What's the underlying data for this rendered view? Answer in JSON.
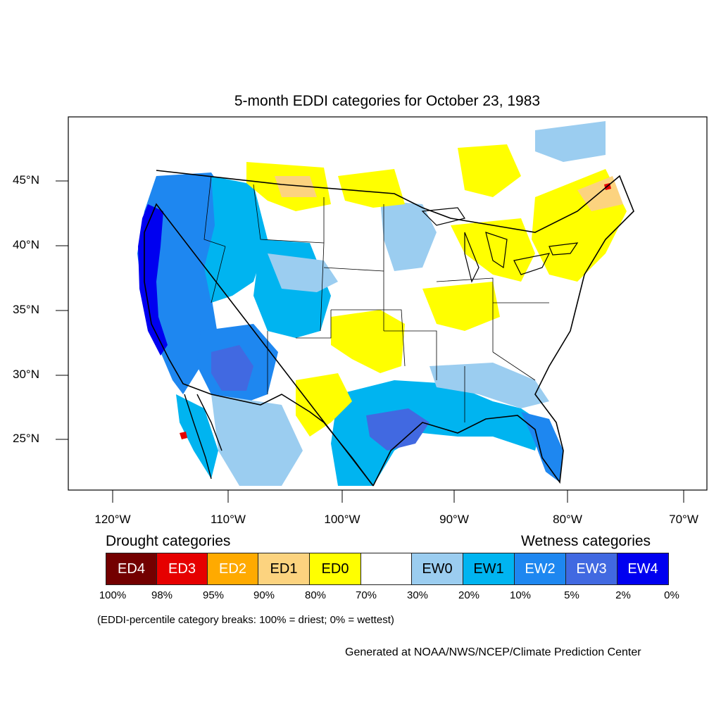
{
  "title": "5-month EDDI categories for October 23, 1983",
  "lat_labels": [
    "45°N",
    "40°N",
    "35°N",
    "30°N",
    "25°N"
  ],
  "lon_labels": [
    "120°W",
    "110°W",
    "100°W",
    "90°W",
    "80°W",
    "70°W"
  ],
  "legend": {
    "drought_heading": "Drought categories",
    "wetness_heading": "Wetness categories",
    "categories": [
      {
        "label": "ED4",
        "color": "#730000",
        "text_color": "#ffffff"
      },
      {
        "label": "ED3",
        "color": "#e60000",
        "text_color": "#ffffff"
      },
      {
        "label": "ED2",
        "color": "#ffaa00",
        "text_color": "#ffffff"
      },
      {
        "label": "ED1",
        "color": "#fcd37f",
        "text_color": "#000000"
      },
      {
        "label": "ED0",
        "color": "#ffff00",
        "text_color": "#000000"
      },
      {
        "label": "",
        "color": "#ffffff",
        "text_color": "#000000"
      },
      {
        "label": "EW0",
        "color": "#9bcdf0",
        "text_color": "#000000"
      },
      {
        "label": "EW1",
        "color": "#00b4f0",
        "text_color": "#000000"
      },
      {
        "label": "EW2",
        "color": "#1e87f0",
        "text_color": "#ffffff"
      },
      {
        "label": "EW3",
        "color": "#4169e1",
        "text_color": "#ffffff"
      },
      {
        "label": "EW4",
        "color": "#0000f0",
        "text_color": "#ffffff"
      }
    ],
    "breaks": [
      "100%",
      "98%",
      "95%",
      "90%",
      "80%",
      "70%",
      "30%",
      "20%",
      "10%",
      "5%",
      "2%",
      "0%"
    ]
  },
  "note": "(EDDI-percentile category breaks: 100% = driest; 0% = wettest)",
  "credit": "Generated at NOAA/NWS/NCEP/Climate Prediction Center"
}
